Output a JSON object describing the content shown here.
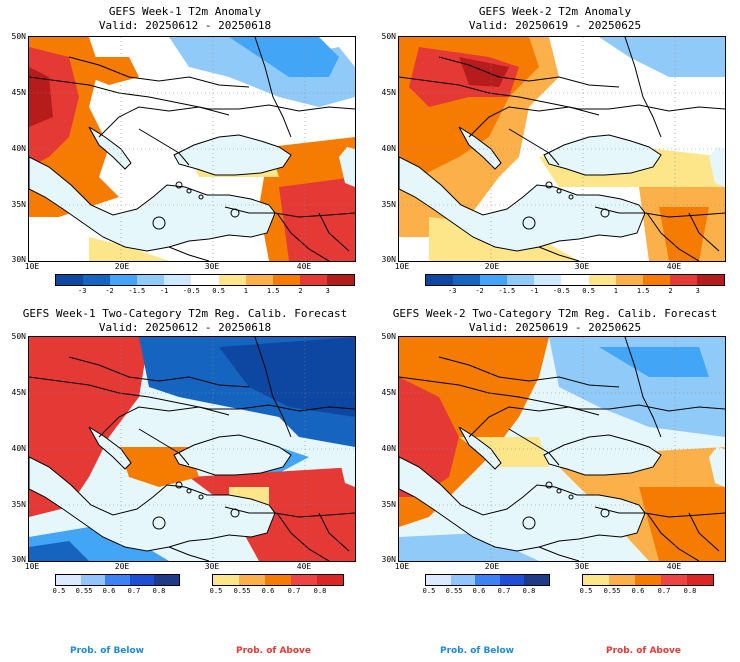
{
  "colors": {
    "red_dark": "#b71c1c",
    "red": "#e53935",
    "orange": "#f57c00",
    "orange_light": "#fbb04a",
    "yellow": "#fde68a",
    "blue_dark": "#0d47a1",
    "blue": "#1565c0",
    "blue_mid": "#42a5f5",
    "blue_light": "#90caf9",
    "sea": "#e6f7fb",
    "prob_below_text": "#1e88e5",
    "prob_above_text": "#e53935"
  },
  "panels": [
    {
      "title": "GEFS Week-1 T2m Anomaly",
      "valid": "Valid: 20250612 - 20250618",
      "lat_labels": [
        "50N",
        "45N",
        "40N",
        "35N",
        "30N"
      ],
      "lon_labels": [
        "10E",
        "20E",
        "30E",
        "40E"
      ],
      "colorbar": [
        "-3",
        "-2",
        "-1.5",
        "-1",
        "-0.5",
        "0.5",
        "1",
        "1.5",
        "2",
        "3"
      ],
      "kind": "anomaly",
      "week": 1
    },
    {
      "title": "GEFS Week-2 T2m Anomaly",
      "valid": "Valid: 20250619 - 20250625",
      "lat_labels": [
        "50N",
        "45N",
        "40N",
        "35N",
        "30N"
      ],
      "lon_labels": [
        "10E",
        "20E",
        "30E",
        "40E"
      ],
      "colorbar": [
        "-3",
        "-2",
        "-1.5",
        "-1",
        "-0.5",
        "0.5",
        "1",
        "1.5",
        "2",
        "3"
      ],
      "kind": "anomaly",
      "week": 2
    },
    {
      "title": "GEFS Week-1 Two-Category T2m Reg. Calib. Forecast",
      "valid": "Valid: 20250612 - 20250618",
      "lat_labels": [
        "50N",
        "45N",
        "40N",
        "35N",
        "30N"
      ],
      "lon_labels": [
        "10E",
        "20E",
        "30E",
        "40E"
      ],
      "cbar_below": [
        "0.5",
        "0.55",
        "0.6",
        "0.7",
        "0.8"
      ],
      "cbar_above": [
        "0.5",
        "0.55",
        "0.6",
        "0.7",
        "0.8"
      ],
      "kind": "prob",
      "week": 1
    },
    {
      "title": "GEFS Week-2 Two-Category T2m Reg. Calib. Forecast",
      "valid": "Valid: 20250619 - 20250625",
      "lat_labels": [
        "50N",
        "45N",
        "40N",
        "35N",
        "30N"
      ],
      "lon_labels": [
        "10E",
        "20E",
        "30E",
        "40E"
      ],
      "cbar_below": [
        "0.5",
        "0.55",
        "0.6",
        "0.7",
        "0.8"
      ],
      "cbar_above": [
        "0.5",
        "0.55",
        "0.6",
        "0.7",
        "0.8"
      ],
      "kind": "prob",
      "week": 2
    }
  ],
  "footer": {
    "left_below": "Prob. of Below",
    "left_above": "Prob. of Above",
    "right_below": "Prob. of Below",
    "right_above": "Prob. of Above"
  }
}
